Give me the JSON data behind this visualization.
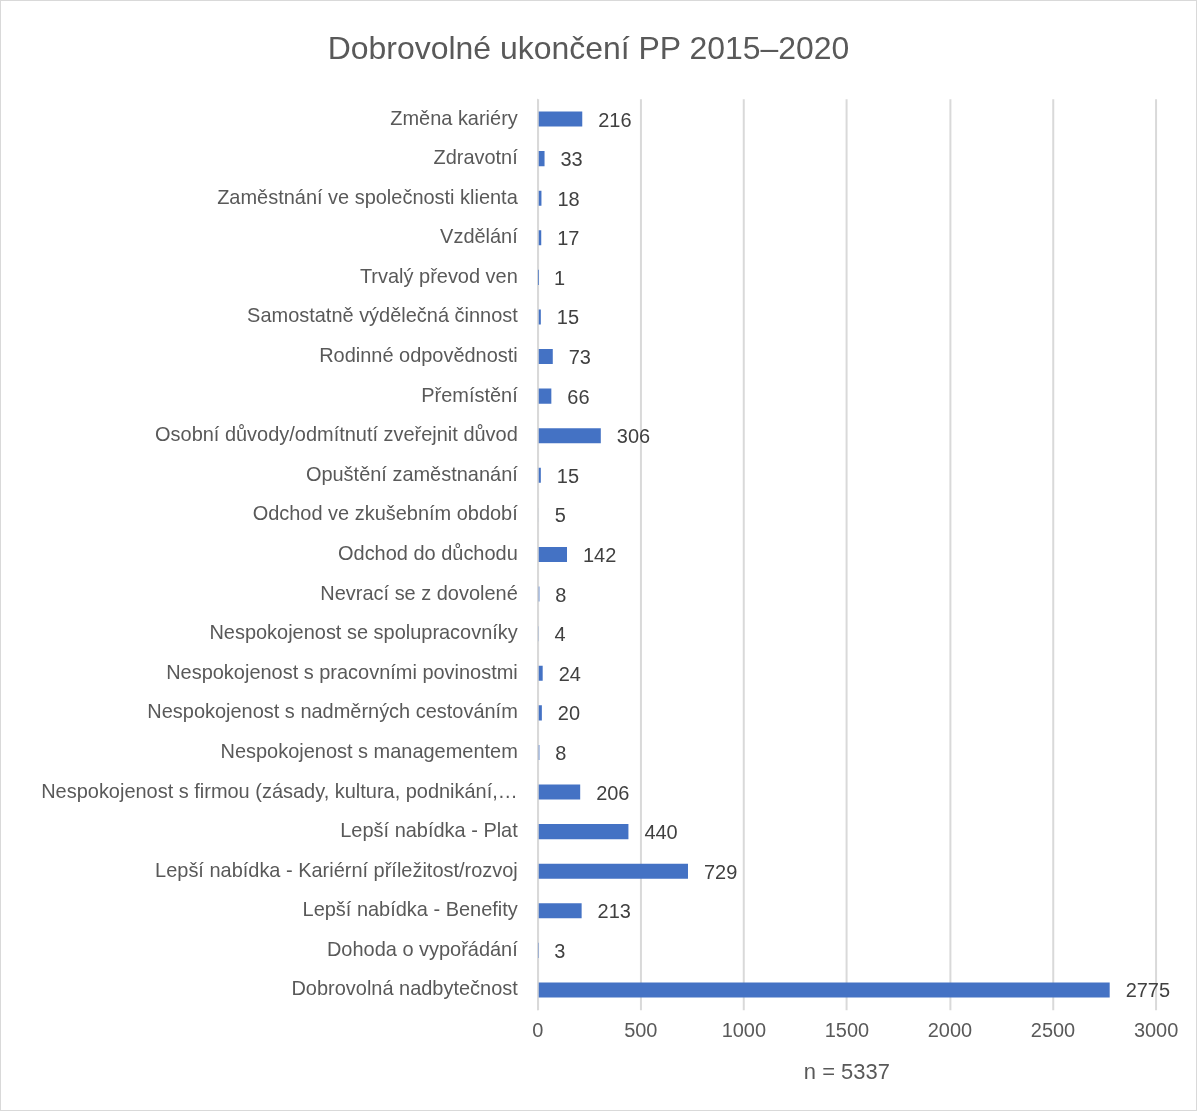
{
  "chart_data": {
    "type": "bar",
    "orientation": "horizontal",
    "title": "Dobrovolné ukončení PP 2015–2020",
    "xlabel": "n = 5337",
    "categories": [
      "Změna kariéry",
      "Zdravotní",
      "Zaměstnání ve společnosti klienta",
      "Vzdělání",
      "Trvalý převod ven",
      "Samostatně výdělečná činnost",
      "Rodinné odpovědnosti",
      "Přemístění",
      "Osobní důvody/odmítnutí zveřejnit důvod",
      "Opuštění zaměstnanání",
      "Odchod ve zkušebním období",
      "Odchod do důchodu",
      "Nevrací se z dovolené",
      "Nespokojenost se spolupracovníky",
      "Nespokojenost s pracovními povinostmi",
      "Nespokojenost s nadměrných cestováním",
      "Nespokojenost s managementem",
      "Nespokojenost s firmou (zásady, kultura, podnikání,…",
      "Lepší nabídka - Plat",
      "Lepší nabídka - Kariérní příležitost/rozvoj",
      "Lepší nabídka - Benefity",
      "Dohoda o vypořádání",
      "Dobrovolná nadbytečnost"
    ],
    "values": [
      216,
      33,
      18,
      17,
      1,
      15,
      73,
      66,
      306,
      15,
      5,
      142,
      8,
      4,
      24,
      20,
      8,
      206,
      440,
      729,
      213,
      3,
      2775
    ],
    "color": "#4472c4",
    "xlim": [
      0,
      3000
    ],
    "xticks": [
      0,
      500,
      1000,
      1500,
      2000,
      2500,
      3000
    ],
    "grid": "x",
    "data_labels": true
  }
}
